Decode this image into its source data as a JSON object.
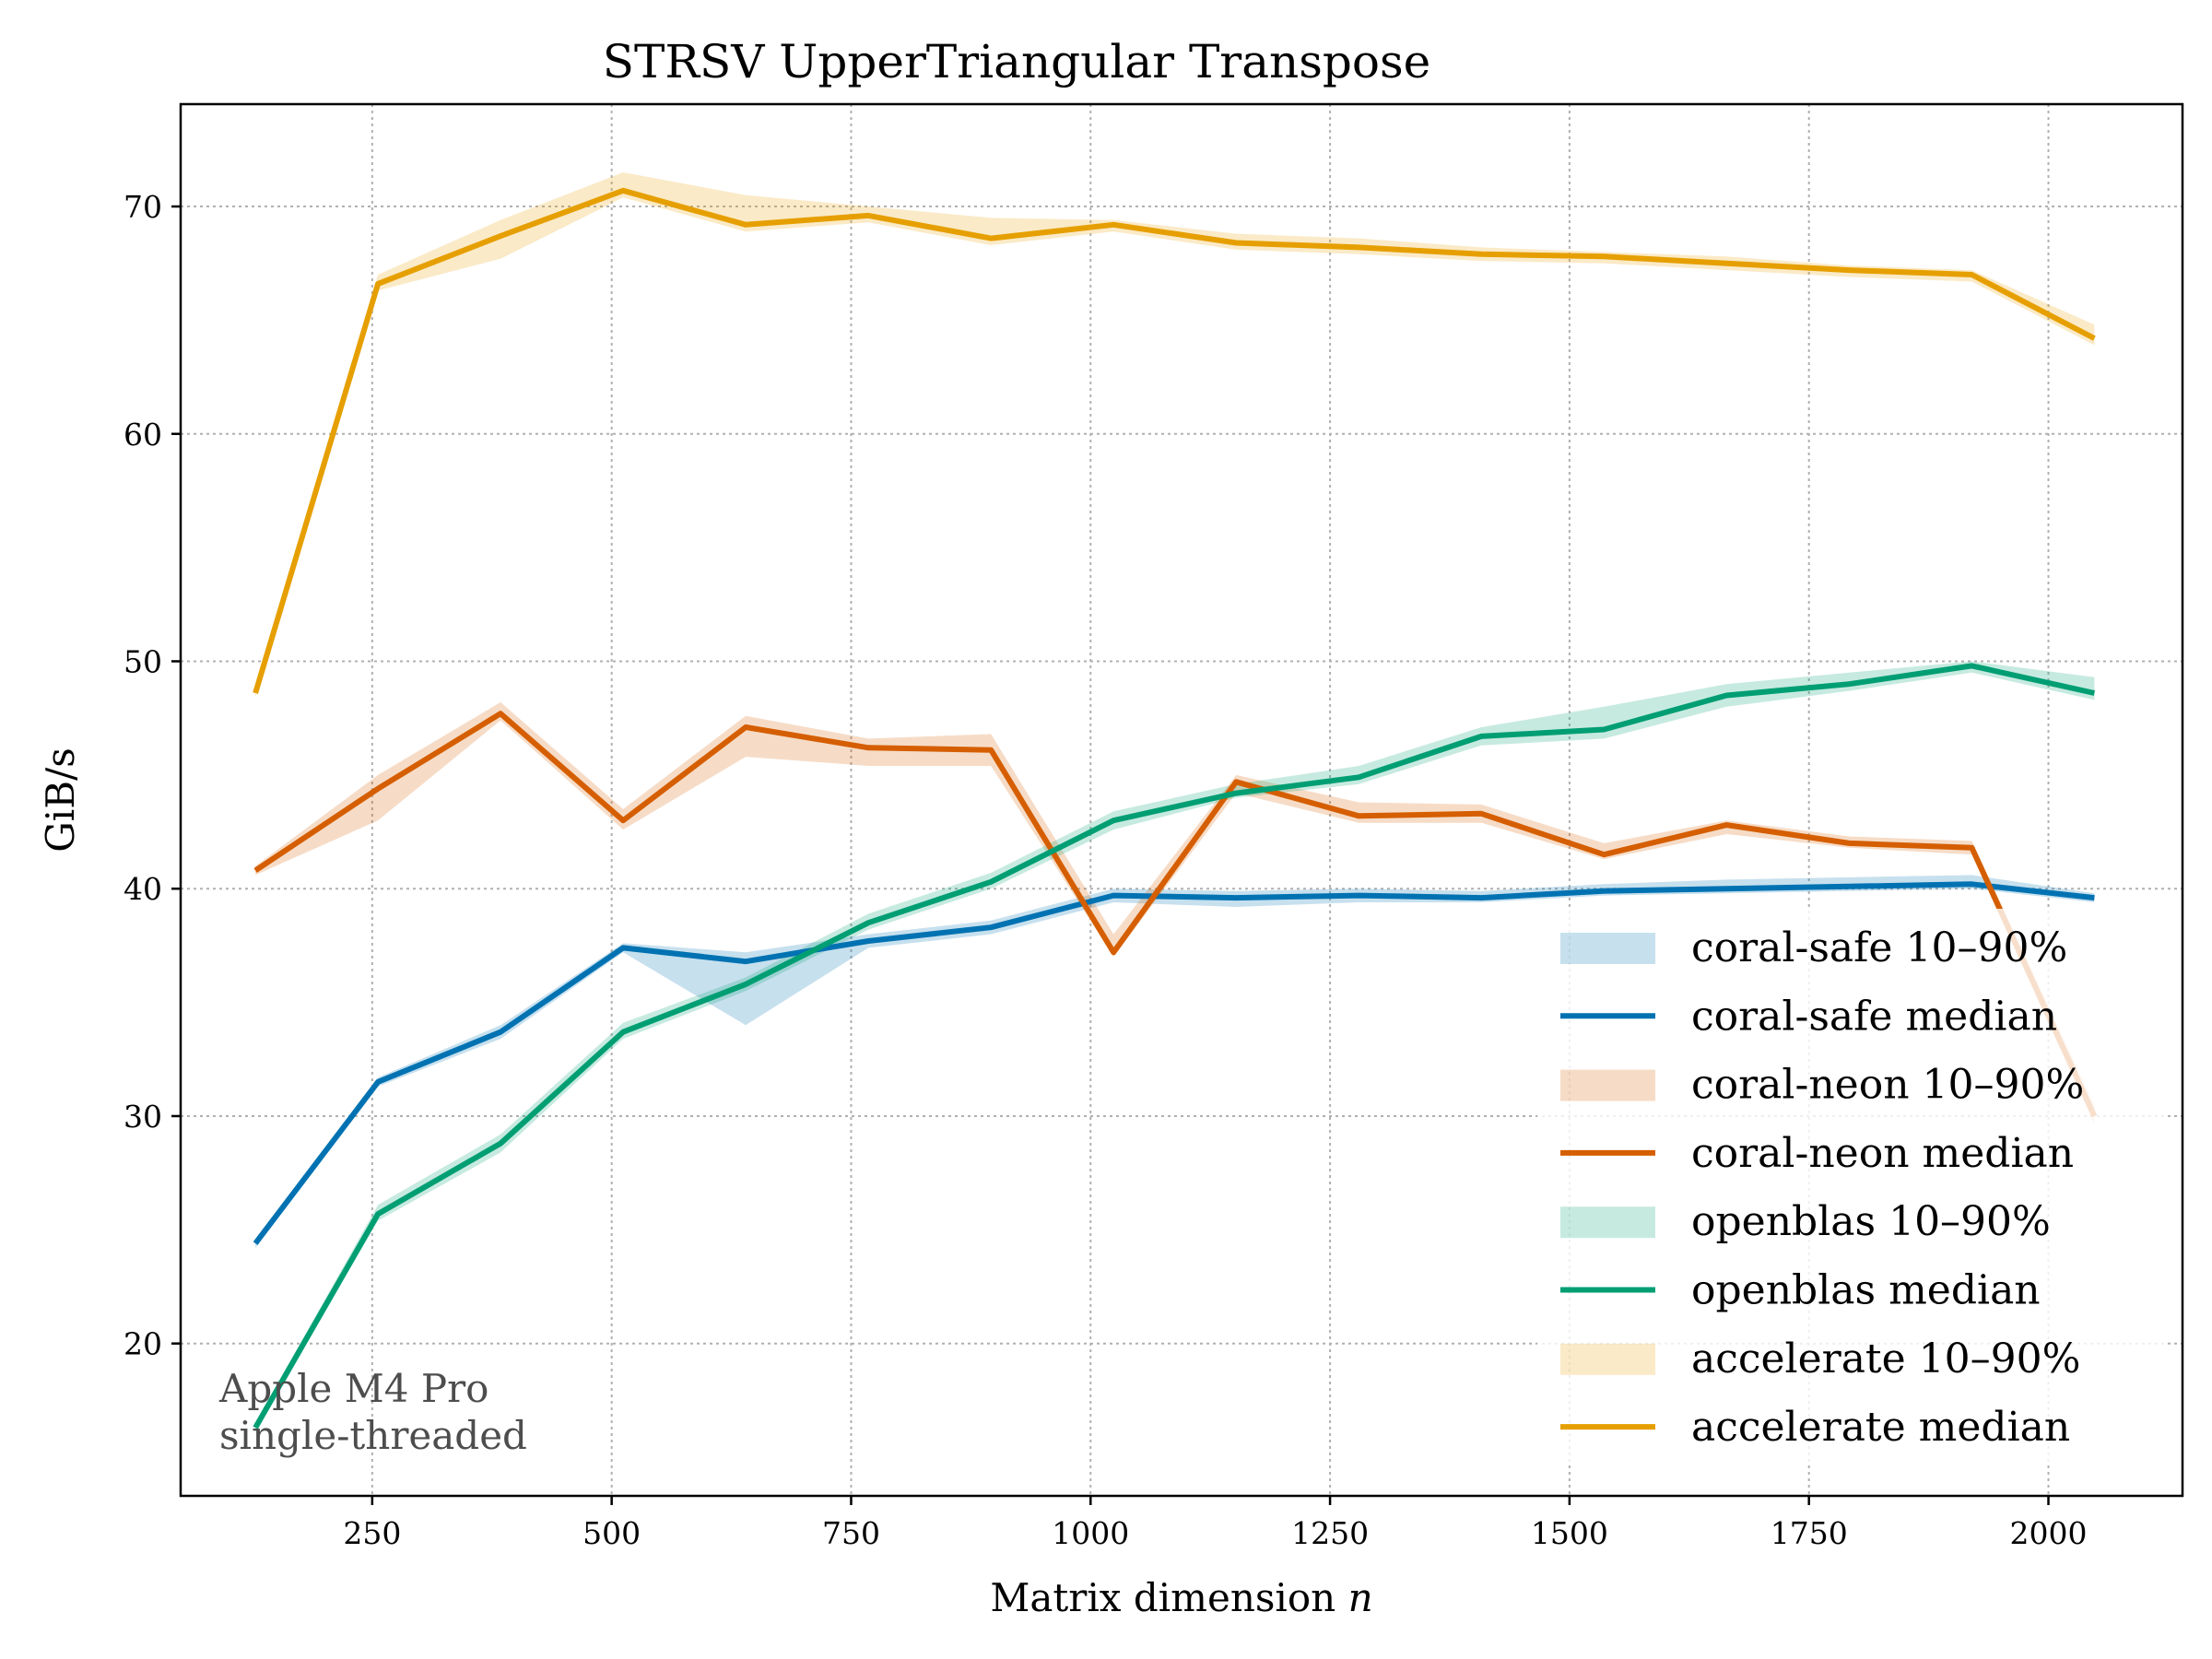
{
  "chart_data": {
    "type": "line",
    "title": "STRSV  UpperTriangular  Transpose",
    "xlabel": "Matrix dimension n",
    "xlabel_text": "Matrix dimension ",
    "xlabel_var": "n",
    "ylabel": "GiB/s",
    "xlim": [
      50,
      2140
    ],
    "ylim": [
      13.3,
      74.5
    ],
    "xticks": [
      250,
      500,
      750,
      1000,
      1250,
      1500,
      1750,
      2000
    ],
    "yticks": [
      20,
      30,
      40,
      50,
      60,
      70
    ],
    "grid": true,
    "legend_position": "lower-right",
    "annotation": [
      "Apple M4 Pro",
      "single-threaded"
    ],
    "x": [
      128,
      256,
      384,
      512,
      640,
      768,
      896,
      1024,
      1152,
      1280,
      1408,
      1536,
      1664,
      1792,
      1920,
      2048
    ],
    "series": [
      {
        "name": "coral-safe",
        "color": "#0072B2",
        "median": [
          24.4,
          31.5,
          33.7,
          37.4,
          36.8,
          37.7,
          38.3,
          39.7,
          39.6,
          39.7,
          39.6,
          39.9,
          40.0,
          40.1,
          40.2,
          39.6
        ],
        "p10": [
          24.2,
          31.3,
          33.4,
          37.2,
          34.0,
          37.4,
          38.0,
          39.4,
          39.2,
          39.4,
          39.4,
          39.7,
          39.8,
          39.9,
          40.0,
          39.4
        ],
        "p90": [
          24.6,
          31.7,
          34.0,
          37.6,
          37.2,
          38.0,
          38.6,
          40.0,
          39.9,
          40.0,
          39.9,
          40.2,
          40.4,
          40.5,
          40.6,
          39.8
        ]
      },
      {
        "name": "coral-neon",
        "color": "#D55E00",
        "median": [
          40.8,
          44.4,
          47.7,
          43.0,
          47.1,
          46.2,
          46.1,
          37.2,
          44.7,
          43.2,
          43.3,
          41.5,
          42.8,
          42.0,
          41.8,
          30.0
        ],
        "p10": [
          40.6,
          43.0,
          47.4,
          42.6,
          45.8,
          45.4,
          45.4,
          37.0,
          44.2,
          42.9,
          42.9,
          41.3,
          42.4,
          41.8,
          41.5,
          29.6
        ],
        "p90": [
          41.0,
          45.0,
          48.2,
          43.5,
          47.6,
          46.6,
          46.8,
          38.0,
          45.0,
          43.8,
          43.7,
          42.0,
          43.0,
          42.3,
          42.1,
          30.5
        ]
      },
      {
        "name": "openblas",
        "color": "#009E73",
        "median": [
          16.3,
          25.7,
          28.8,
          33.7,
          35.8,
          38.5,
          40.3,
          43.0,
          44.2,
          44.9,
          46.7,
          47.0,
          48.5,
          49.0,
          49.8,
          48.6
        ],
        "p10": [
          16.1,
          25.4,
          28.4,
          33.4,
          35.5,
          38.2,
          40.0,
          42.6,
          44.0,
          44.6,
          46.3,
          46.6,
          48.0,
          48.7,
          49.5,
          48.3
        ],
        "p90": [
          16.5,
          26.1,
          29.2,
          34.1,
          36.1,
          38.9,
          40.7,
          43.4,
          44.6,
          45.4,
          47.1,
          48.0,
          49.0,
          49.5,
          50.0,
          49.3
        ]
      },
      {
        "name": "accelerate",
        "color": "#E69F00",
        "median": [
          48.6,
          66.6,
          68.7,
          70.7,
          69.2,
          69.6,
          68.6,
          69.2,
          68.4,
          68.2,
          67.9,
          67.8,
          67.5,
          67.2,
          67.0,
          64.2
        ],
        "p10": [
          48.4,
          66.3,
          67.7,
          70.4,
          68.9,
          69.3,
          68.3,
          68.9,
          68.1,
          67.9,
          67.6,
          67.5,
          67.2,
          66.9,
          66.7,
          63.9
        ],
        "p90": [
          48.8,
          67.0,
          69.4,
          71.5,
          70.5,
          70.0,
          69.5,
          69.4,
          68.8,
          68.6,
          68.2,
          68.0,
          67.8,
          67.4,
          67.2,
          64.8
        ]
      }
    ],
    "legend": [
      {
        "label": "coral-safe 10–90%",
        "kind": "band",
        "series": 0
      },
      {
        "label": "coral-safe median",
        "kind": "line",
        "series": 0
      },
      {
        "label": "coral-neon 10–90%",
        "kind": "band",
        "series": 1
      },
      {
        "label": "coral-neon median",
        "kind": "line",
        "series": 1
      },
      {
        "label": "openblas 10–90%",
        "kind": "band",
        "series": 2
      },
      {
        "label": "openblas median",
        "kind": "line",
        "series": 2
      },
      {
        "label": "accelerate 10–90%",
        "kind": "band",
        "series": 3
      },
      {
        "label": "accelerate median",
        "kind": "line",
        "series": 3
      }
    ]
  }
}
